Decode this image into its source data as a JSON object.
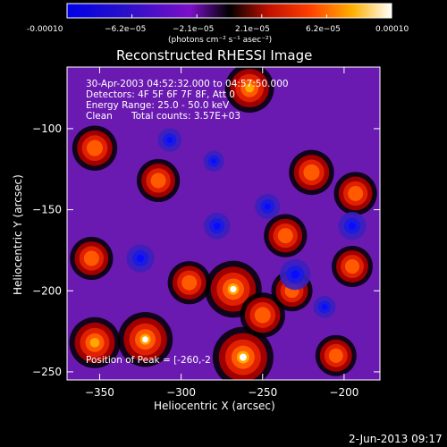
{
  "colorbar": {
    "tick_labels": [
      "-0.00010",
      "−6.2e−05",
      "−2.1e−05",
      "2.1e−05",
      "6.2e−05",
      "0.00010"
    ],
    "units": "(photons cm⁻² s⁻¹ asec⁻²)",
    "range": [
      -0.0001,
      0.0001
    ]
  },
  "chart_data": {
    "type": "heatmap",
    "title": "Reconstructed RHESSI Image",
    "xlabel": "Heliocentric X (arcsec)",
    "ylabel": "Heliocentric Y (arcsec)",
    "xlim": [
      -370,
      -178
    ],
    "ylim": [
      -255,
      -62
    ],
    "x_ticks": [
      -350,
      -300,
      -250,
      -200
    ],
    "y_ticks": [
      -100,
      -150,
      -200,
      -250
    ],
    "x_tick_labels": [
      "−350",
      "−300",
      "−250",
      "−200"
    ],
    "y_tick_labels": [
      "−100",
      "−150",
      "−200",
      "−250"
    ],
    "colormap": "rhessi-blue-purple-red-yellow-white",
    "sources": [
      {
        "x": -262,
        "y": -241,
        "value": 1.0
      },
      {
        "x": -268,
        "y": -199,
        "value": 0.9
      },
      {
        "x": -322,
        "y": -230,
        "value": 0.85
      },
      {
        "x": -353,
        "y": -232,
        "value": 0.75
      },
      {
        "x": -258,
        "y": -75,
        "value": 0.7
      },
      {
        "x": -353,
        "y": -112,
        "value": 0.6
      },
      {
        "x": -355,
        "y": -180,
        "value": 0.55
      },
      {
        "x": -314,
        "y": -132,
        "value": 0.55
      },
      {
        "x": -220,
        "y": -127,
        "value": 0.6
      },
      {
        "x": -193,
        "y": -140,
        "value": 0.55
      },
      {
        "x": -236,
        "y": -166,
        "value": 0.55
      },
      {
        "x": -195,
        "y": -185,
        "value": 0.5
      },
      {
        "x": -295,
        "y": -195,
        "value": 0.55
      },
      {
        "x": -250,
        "y": -215,
        "value": 0.6
      },
      {
        "x": -205,
        "y": -240,
        "value": 0.5
      },
      {
        "x": -232,
        "y": -200,
        "value": 0.5
      },
      {
        "x": -325,
        "y": -180,
        "value": -0.6
      },
      {
        "x": -230,
        "y": -190,
        "value": -0.7
      },
      {
        "x": -278,
        "y": -160,
        "value": -0.55
      },
      {
        "x": -195,
        "y": -160,
        "value": -0.6
      },
      {
        "x": -247,
        "y": -148,
        "value": -0.5
      },
      {
        "x": -307,
        "y": -107,
        "value": -0.45
      },
      {
        "x": -212,
        "y": -210,
        "value": -0.4
      },
      {
        "x": -280,
        "y": -120,
        "value": -0.35
      }
    ],
    "info": {
      "time_range": "30-Apr-2003 04:52:32.000 to 04:57:50.000",
      "detectors": "Detectors: 4F 5F 6F 7F 8F, Att 0",
      "energy": "Energy Range: 25.0 - 50.0 keV",
      "method": "Clean",
      "counts": "Total counts: 3.57E+03",
      "peak": "Position of Peak = [-260,-2"
    }
  },
  "footer_date": "2-Jun-2013 09:17"
}
